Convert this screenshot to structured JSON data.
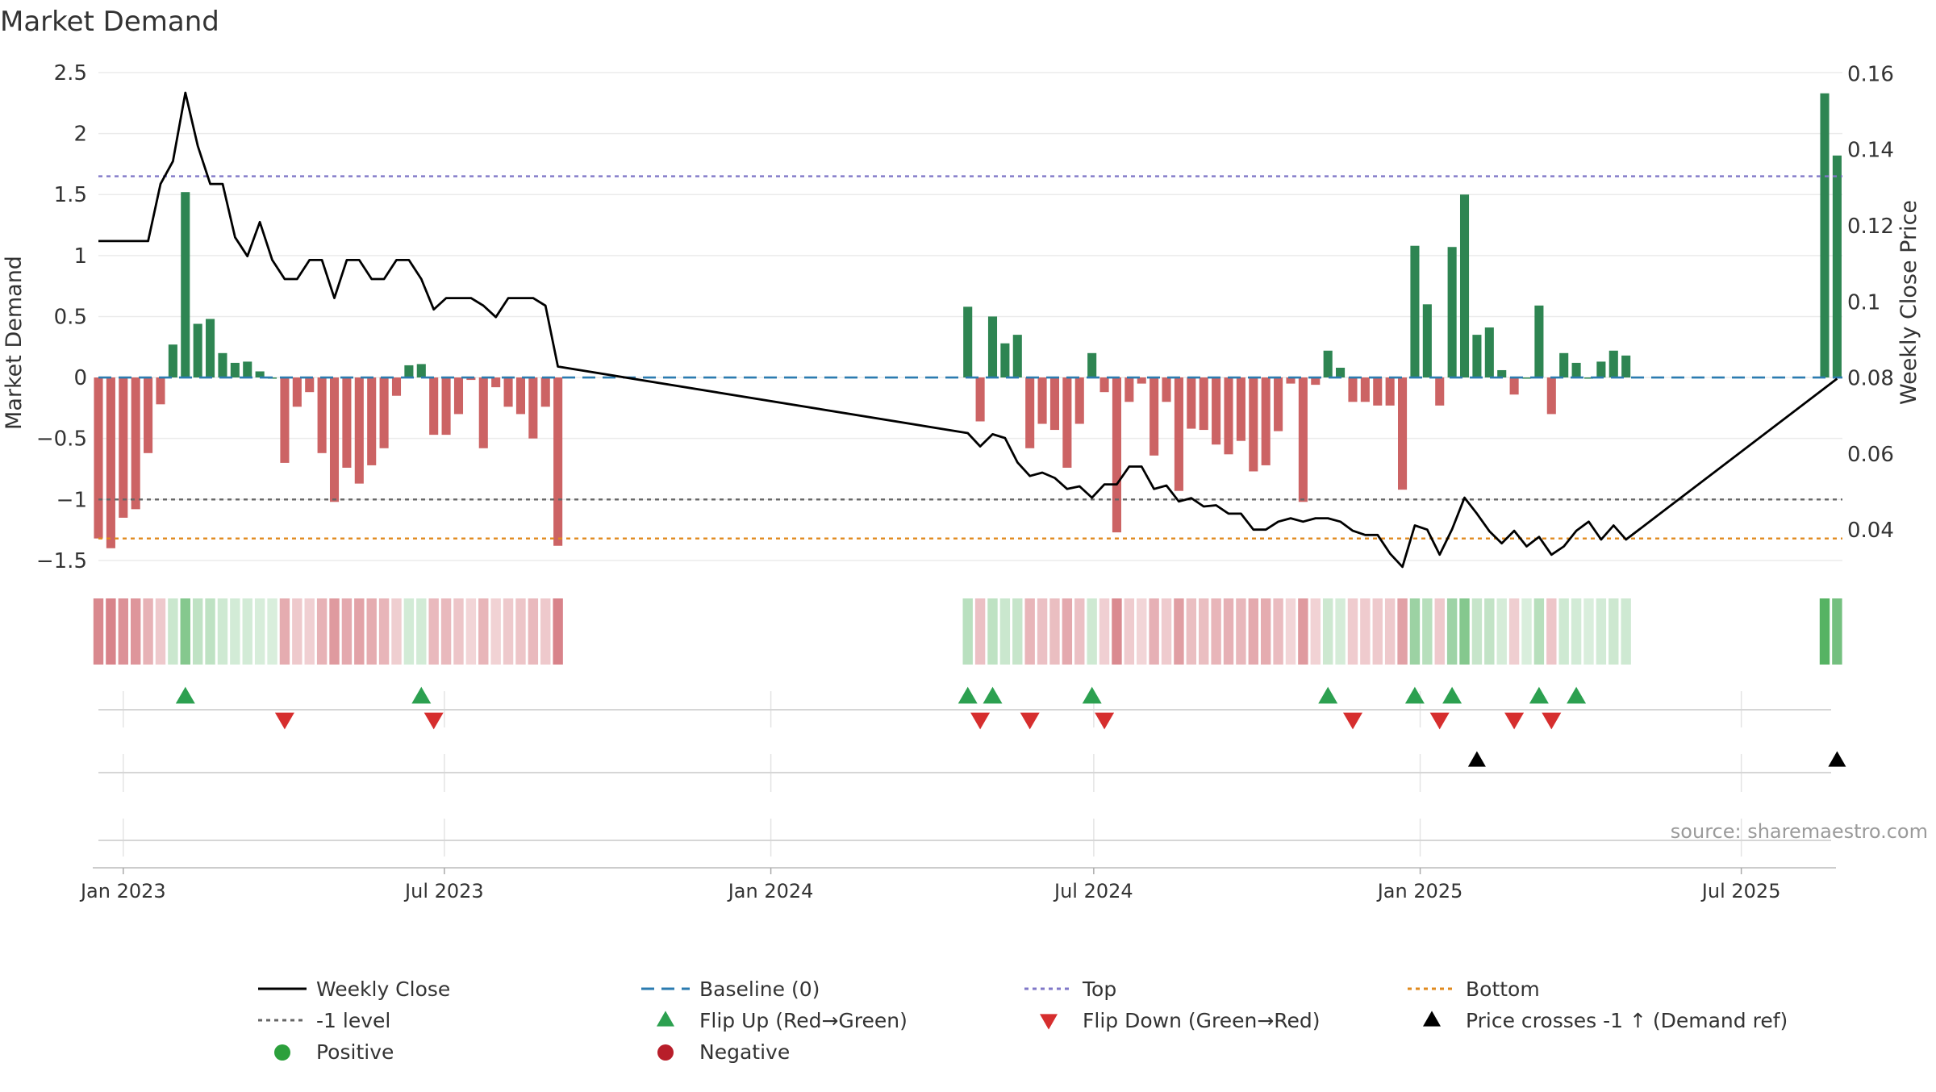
{
  "chart_data": {
    "type": "bar+line",
    "title": "Market Demand",
    "ylabel": "Market Demand",
    "y2label": "Weekly Close Price",
    "source": "source: sharemaestro.com",
    "ylim": [
      -1.6,
      2.5
    ],
    "y2lim": [
      0.0288,
      0.1603
    ],
    "yticks": [
      "2.5",
      "2",
      "1.5",
      "1",
      "0.5",
      "0",
      "−0.5",
      "−1",
      "−1.5"
    ],
    "yticks_values": [
      2.5,
      2,
      1.5,
      1,
      0.5,
      0,
      -0.5,
      -1,
      -1.5
    ],
    "y2ticks": [
      "0.16",
      "0.14",
      "0.12",
      "0.1",
      "0.08",
      "0.06",
      "0.04"
    ],
    "y2ticks_values": [
      0.16,
      0.14,
      0.12,
      0.1,
      0.08,
      0.06,
      0.04
    ],
    "xlim": [
      "2022-12-18",
      "2025-08-27"
    ],
    "xticks": [
      {
        "date": "2023-01-01",
        "label": "Jan 2023"
      },
      {
        "date": "2023-07-01",
        "label": "Jul 2023"
      },
      {
        "date": "2024-01-01",
        "label": "Jan 2024"
      },
      {
        "date": "2024-07-01",
        "label": "Jul 2024"
      },
      {
        "date": "2025-01-01",
        "label": "Jan 2025"
      },
      {
        "date": "2025-07-01",
        "label": "Jul 2025"
      }
    ],
    "reference_lines": [
      {
        "name": "Baseline (0)",
        "value": 0,
        "color": "#2b7bb0",
        "style": "dashed"
      },
      {
        "name": "Top",
        "value": 1.65,
        "color": "#8078c8",
        "style": "dotted"
      },
      {
        "name": "-1 level",
        "value": -1.0,
        "color": "#666666",
        "style": "dotted"
      },
      {
        "name": "Bottom",
        "value": -1.32,
        "color": "#e08a1e",
        "style": "dotted"
      }
    ],
    "colors": {
      "positive": "#2e8552",
      "negative": "#cc6364",
      "close": "#000000",
      "flip_up": "#2ca050",
      "flip_down": "#d62e2e",
      "cross": "#000000"
    },
    "bars": [
      {
        "date": "2022-12-18",
        "value": -1.32
      },
      {
        "date": "2022-12-25",
        "value": -1.4
      },
      {
        "date": "2023-01-01",
        "value": -1.15
      },
      {
        "date": "2023-01-08",
        "value": -1.08
      },
      {
        "date": "2023-01-15",
        "value": -0.62
      },
      {
        "date": "2023-01-22",
        "value": -0.22
      },
      {
        "date": "2023-01-29",
        "value": 0.27
      },
      {
        "date": "2023-02-05",
        "value": 1.52
      },
      {
        "date": "2023-02-12",
        "value": 0.44
      },
      {
        "date": "2023-02-19",
        "value": 0.48
      },
      {
        "date": "2023-02-26",
        "value": 0.2
      },
      {
        "date": "2023-03-05",
        "value": 0.12
      },
      {
        "date": "2023-03-12",
        "value": 0.13
      },
      {
        "date": "2023-03-19",
        "value": 0.05
      },
      {
        "date": "2023-03-26",
        "value": 0.0
      },
      {
        "date": "2023-04-02",
        "value": -0.7
      },
      {
        "date": "2023-04-09",
        "value": -0.24
      },
      {
        "date": "2023-04-16",
        "value": -0.12
      },
      {
        "date": "2023-04-23",
        "value": -0.62
      },
      {
        "date": "2023-04-30",
        "value": -1.02
      },
      {
        "date": "2023-05-07",
        "value": -0.74
      },
      {
        "date": "2023-05-14",
        "value": -0.87
      },
      {
        "date": "2023-05-21",
        "value": -0.72
      },
      {
        "date": "2023-05-28",
        "value": -0.58
      },
      {
        "date": "2023-06-04",
        "value": -0.15
      },
      {
        "date": "2023-06-11",
        "value": 0.1
      },
      {
        "date": "2023-06-18",
        "value": 0.11
      },
      {
        "date": "2023-06-25",
        "value": -0.47
      },
      {
        "date": "2023-07-02",
        "value": -0.47
      },
      {
        "date": "2023-07-09",
        "value": -0.3
      },
      {
        "date": "2023-07-16",
        "value": -0.02
      },
      {
        "date": "2023-07-23",
        "value": -0.58
      },
      {
        "date": "2023-07-30",
        "value": -0.08
      },
      {
        "date": "2023-08-06",
        "value": -0.24
      },
      {
        "date": "2023-08-13",
        "value": -0.3
      },
      {
        "date": "2023-08-20",
        "value": -0.5
      },
      {
        "date": "2023-08-27",
        "value": -0.24
      },
      {
        "date": "2023-09-03",
        "value": -1.38
      },
      {
        "date": "2024-04-21",
        "value": 0.58
      },
      {
        "date": "2024-04-28",
        "value": -0.36
      },
      {
        "date": "2024-05-05",
        "value": 0.5
      },
      {
        "date": "2024-05-12",
        "value": 0.28
      },
      {
        "date": "2024-05-19",
        "value": 0.35
      },
      {
        "date": "2024-05-26",
        "value": -0.58
      },
      {
        "date": "2024-06-02",
        "value": -0.38
      },
      {
        "date": "2024-06-09",
        "value": -0.43
      },
      {
        "date": "2024-06-16",
        "value": -0.74
      },
      {
        "date": "2024-06-23",
        "value": -0.38
      },
      {
        "date": "2024-06-30",
        "value": 0.2
      },
      {
        "date": "2024-07-07",
        "value": -0.12
      },
      {
        "date": "2024-07-14",
        "value": -1.27
      },
      {
        "date": "2024-07-21",
        "value": -0.2
      },
      {
        "date": "2024-07-28",
        "value": -0.05
      },
      {
        "date": "2024-08-04",
        "value": -0.64
      },
      {
        "date": "2024-08-11",
        "value": -0.2
      },
      {
        "date": "2024-08-18",
        "value": -0.93
      },
      {
        "date": "2024-08-25",
        "value": -0.42
      },
      {
        "date": "2024-09-01",
        "value": -0.43
      },
      {
        "date": "2024-09-08",
        "value": -0.55
      },
      {
        "date": "2024-09-15",
        "value": -0.63
      },
      {
        "date": "2024-09-22",
        "value": -0.52
      },
      {
        "date": "2024-09-29",
        "value": -0.77
      },
      {
        "date": "2024-10-06",
        "value": -0.72
      },
      {
        "date": "2024-10-13",
        "value": -0.44
      },
      {
        "date": "2024-10-20",
        "value": -0.05
      },
      {
        "date": "2024-10-27",
        "value": -1.02
      },
      {
        "date": "2024-11-03",
        "value": -0.06
      },
      {
        "date": "2024-11-10",
        "value": 0.22
      },
      {
        "date": "2024-11-17",
        "value": 0.08
      },
      {
        "date": "2024-11-24",
        "value": -0.2
      },
      {
        "date": "2024-12-01",
        "value": -0.2
      },
      {
        "date": "2024-12-08",
        "value": -0.23
      },
      {
        "date": "2024-12-15",
        "value": -0.23
      },
      {
        "date": "2024-12-22",
        "value": -0.92
      },
      {
        "date": "2024-12-29",
        "value": 1.08
      },
      {
        "date": "2025-01-05",
        "value": 0.6
      },
      {
        "date": "2025-01-12",
        "value": -0.23
      },
      {
        "date": "2025-01-19",
        "value": 1.07
      },
      {
        "date": "2025-01-26",
        "value": 1.5
      },
      {
        "date": "2025-02-02",
        "value": 0.35
      },
      {
        "date": "2025-02-09",
        "value": 0.41
      },
      {
        "date": "2025-02-16",
        "value": 0.06
      },
      {
        "date": "2025-02-23",
        "value": -0.14
      },
      {
        "date": "2025-03-02",
        "value": 0.0
      },
      {
        "date": "2025-03-09",
        "value": 0.59
      },
      {
        "date": "2025-03-16",
        "value": -0.3
      },
      {
        "date": "2025-03-23",
        "value": 0.2
      },
      {
        "date": "2025-03-30",
        "value": 0.12
      },
      {
        "date": "2025-04-06",
        "value": 0.0
      },
      {
        "date": "2025-04-13",
        "value": 0.13
      },
      {
        "date": "2025-04-20",
        "value": 0.22
      },
      {
        "date": "2025-04-27",
        "value": 0.18
      },
      {
        "date": "2025-08-17",
        "value": 2.33
      },
      {
        "date": "2025-08-24",
        "value": 1.82
      }
    ],
    "weekly_close": [
      {
        "date": "2022-12-18",
        "close": 0.116
      },
      {
        "date": "2022-12-25",
        "close": 0.116
      },
      {
        "date": "2023-01-01",
        "close": 0.116
      },
      {
        "date": "2023-01-08",
        "close": 0.116
      },
      {
        "date": "2023-01-15",
        "close": 0.116
      },
      {
        "date": "2023-01-22",
        "close": 0.131
      },
      {
        "date": "2023-01-29",
        "close": 0.137
      },
      {
        "date": "2023-02-05",
        "close": 0.155
      },
      {
        "date": "2023-02-12",
        "close": 0.141
      },
      {
        "date": "2023-02-19",
        "close": 0.131
      },
      {
        "date": "2023-02-26",
        "close": 0.131
      },
      {
        "date": "2023-03-05",
        "close": 0.117
      },
      {
        "date": "2023-03-12",
        "close": 0.112
      },
      {
        "date": "2023-03-19",
        "close": 0.121
      },
      {
        "date": "2023-03-26",
        "close": 0.111
      },
      {
        "date": "2023-04-02",
        "close": 0.106
      },
      {
        "date": "2023-04-09",
        "close": 0.106
      },
      {
        "date": "2023-04-16",
        "close": 0.111
      },
      {
        "date": "2023-04-23",
        "close": 0.111
      },
      {
        "date": "2023-04-30",
        "close": 0.101
      },
      {
        "date": "2023-05-07",
        "close": 0.111
      },
      {
        "date": "2023-05-14",
        "close": 0.111
      },
      {
        "date": "2023-05-21",
        "close": 0.106
      },
      {
        "date": "2023-05-28",
        "close": 0.106
      },
      {
        "date": "2023-06-04",
        "close": 0.111
      },
      {
        "date": "2023-06-11",
        "close": 0.111
      },
      {
        "date": "2023-06-18",
        "close": 0.106
      },
      {
        "date": "2023-06-25",
        "close": 0.098
      },
      {
        "date": "2023-07-02",
        "close": 0.101
      },
      {
        "date": "2023-07-09",
        "close": 0.101
      },
      {
        "date": "2023-07-16",
        "close": 0.101
      },
      {
        "date": "2023-07-23",
        "close": 0.099
      },
      {
        "date": "2023-07-30",
        "close": 0.096
      },
      {
        "date": "2023-08-06",
        "close": 0.101
      },
      {
        "date": "2023-08-13",
        "close": 0.101
      },
      {
        "date": "2023-08-20",
        "close": 0.101
      },
      {
        "date": "2023-08-27",
        "close": 0.099
      },
      {
        "date": "2023-09-03",
        "close": 0.083
      },
      {
        "date": "2024-04-21",
        "close": 0.0655
      },
      {
        "date": "2024-04-28",
        "close": 0.062
      },
      {
        "date": "2024-05-05",
        "close": 0.0652
      },
      {
        "date": "2024-05-12",
        "close": 0.0642
      },
      {
        "date": "2024-05-19",
        "close": 0.0578
      },
      {
        "date": "2024-05-26",
        "close": 0.0542
      },
      {
        "date": "2024-06-02",
        "close": 0.0551
      },
      {
        "date": "2024-06-09",
        "close": 0.0537
      },
      {
        "date": "2024-06-16",
        "close": 0.0508
      },
      {
        "date": "2024-06-23",
        "close": 0.0515
      },
      {
        "date": "2024-06-30",
        "close": 0.0485
      },
      {
        "date": "2024-07-07",
        "close": 0.052
      },
      {
        "date": "2024-07-14",
        "close": 0.052
      },
      {
        "date": "2024-07-21",
        "close": 0.0567
      },
      {
        "date": "2024-07-28",
        "close": 0.0567
      },
      {
        "date": "2024-08-04",
        "close": 0.0508
      },
      {
        "date": "2024-08-11",
        "close": 0.0517
      },
      {
        "date": "2024-08-18",
        "close": 0.0475
      },
      {
        "date": "2024-08-25",
        "close": 0.0484
      },
      {
        "date": "2024-09-01",
        "close": 0.0462
      },
      {
        "date": "2024-09-08",
        "close": 0.0465
      },
      {
        "date": "2024-09-15",
        "close": 0.0443
      },
      {
        "date": "2024-09-22",
        "close": 0.0443
      },
      {
        "date": "2024-09-29",
        "close": 0.0401
      },
      {
        "date": "2024-10-06",
        "close": 0.0401
      },
      {
        "date": "2024-10-13",
        "close": 0.0422
      },
      {
        "date": "2024-10-20",
        "close": 0.0431
      },
      {
        "date": "2024-10-27",
        "close": 0.0422
      },
      {
        "date": "2024-11-03",
        "close": 0.0431
      },
      {
        "date": "2024-11-10",
        "close": 0.0431
      },
      {
        "date": "2024-11-17",
        "close": 0.0422
      },
      {
        "date": "2024-11-24",
        "close": 0.0398
      },
      {
        "date": "2024-12-01",
        "close": 0.0387
      },
      {
        "date": "2024-12-08",
        "close": 0.0387
      },
      {
        "date": "2024-12-15",
        "close": 0.0338
      },
      {
        "date": "2024-12-22",
        "close": 0.0303
      },
      {
        "date": "2024-12-29",
        "close": 0.0412
      },
      {
        "date": "2025-01-05",
        "close": 0.0401
      },
      {
        "date": "2025-01-12",
        "close": 0.0335
      },
      {
        "date": "2025-01-19",
        "close": 0.0402
      },
      {
        "date": "2025-01-26",
        "close": 0.0485
      },
      {
        "date": "2025-02-02",
        "close": 0.0443
      },
      {
        "date": "2025-02-09",
        "close": 0.0397
      },
      {
        "date": "2025-02-16",
        "close": 0.0365
      },
      {
        "date": "2025-02-23",
        "close": 0.0398
      },
      {
        "date": "2025-03-02",
        "close": 0.0357
      },
      {
        "date": "2025-03-09",
        "close": 0.0382
      },
      {
        "date": "2025-03-16",
        "close": 0.0335
      },
      {
        "date": "2025-03-23",
        "close": 0.0357
      },
      {
        "date": "2025-03-30",
        "close": 0.0398
      },
      {
        "date": "2025-04-06",
        "close": 0.0422
      },
      {
        "date": "2025-04-13",
        "close": 0.0375
      },
      {
        "date": "2025-04-20",
        "close": 0.0412
      },
      {
        "date": "2025-04-27",
        "close": 0.0375
      },
      {
        "date": "2025-08-24",
        "close": 0.0798
      }
    ],
    "flip_up": [
      "2023-02-05",
      "2023-06-18",
      "2024-04-21",
      "2024-05-05",
      "2024-06-30",
      "2024-11-10",
      "2024-12-29",
      "2025-01-19",
      "2025-03-09",
      "2025-03-30"
    ],
    "flip_down": [
      "2023-04-02",
      "2023-06-25",
      "2024-04-28",
      "2024-05-26",
      "2024-07-07",
      "2024-11-24",
      "2025-01-12",
      "2025-02-23",
      "2025-03-16"
    ],
    "price_cross_up": [
      "2025-02-02",
      "2025-08-24"
    ],
    "legend": [
      {
        "label": "Weekly Close",
        "kind": "line",
        "color": "#000000"
      },
      {
        "label": "Baseline (0)",
        "kind": "dashed",
        "color": "#2b7bb0"
      },
      {
        "label": "Top",
        "kind": "dotted",
        "color": "#8078c8"
      },
      {
        "label": "Bottom",
        "kind": "dotted",
        "color": "#e08a1e"
      },
      {
        "label": "-1 level",
        "kind": "dotted",
        "color": "#666666"
      },
      {
        "label": "Flip Up (Red→Green)",
        "kind": "tri-up",
        "color": "#2ca050"
      },
      {
        "label": "Flip Down (Green→Red)",
        "kind": "tri-down",
        "color": "#d62e2e"
      },
      {
        "label": "Price crosses -1 ↑ (Demand ref)",
        "kind": "tri-up",
        "color": "#000000"
      },
      {
        "label": "Positive",
        "kind": "dot",
        "color": "#2ca03c"
      },
      {
        "label": "Negative",
        "kind": "dot",
        "color": "#b81e2a"
      }
    ]
  }
}
